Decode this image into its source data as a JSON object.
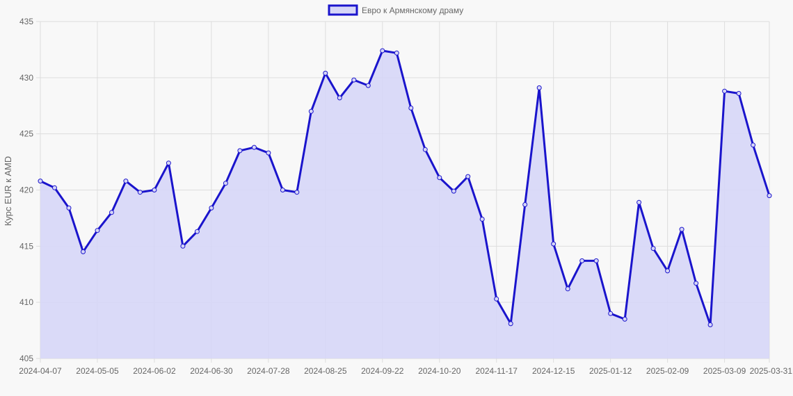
{
  "chart_data": {
    "type": "area",
    "title": "",
    "xlabel": "",
    "ylabel": "Курс EUR к AMD",
    "ylim": [
      405,
      435
    ],
    "y_ticks": [
      405,
      410,
      415,
      420,
      425,
      430,
      435
    ],
    "x_tick_labels": [
      "2024-04-07",
      "2024-05-05",
      "2024-06-02",
      "2024-06-30",
      "2024-07-28",
      "2024-08-25",
      "2024-09-22",
      "2024-10-20",
      "2024-11-17",
      "2024-12-15",
      "2025-01-12",
      "2025-02-09",
      "2025-03-09",
      "2025-03-31"
    ],
    "grid": true,
    "legend_position": "top-center",
    "colors": {
      "line": "#1a14cc",
      "fill": "#d6d6f7",
      "grid": "#dddddd",
      "axis_text": "#666666"
    },
    "series": [
      {
        "name": "Евро к Армянскому драму",
        "x": [
          "2024-04-07",
          "2024-04-14",
          "2024-04-21",
          "2024-04-28",
          "2024-05-05",
          "2024-05-12",
          "2024-05-19",
          "2024-05-26",
          "2024-06-02",
          "2024-06-09",
          "2024-06-16",
          "2024-06-23",
          "2024-06-30",
          "2024-07-07",
          "2024-07-14",
          "2024-07-21",
          "2024-07-28",
          "2024-08-04",
          "2024-08-11",
          "2024-08-18",
          "2024-08-25",
          "2024-09-01",
          "2024-09-08",
          "2024-09-15",
          "2024-09-22",
          "2024-09-29",
          "2024-10-06",
          "2024-10-13",
          "2024-10-20",
          "2024-10-27",
          "2024-11-03",
          "2024-11-10",
          "2024-11-17",
          "2024-11-24",
          "2024-12-01",
          "2024-12-08",
          "2024-12-15",
          "2024-12-22",
          "2024-12-29",
          "2025-01-05",
          "2025-01-12",
          "2025-01-19",
          "2025-01-26",
          "2025-02-02",
          "2025-02-09",
          "2025-02-16",
          "2025-02-23",
          "2025-03-02",
          "2025-03-09",
          "2025-03-16",
          "2025-03-23",
          "2025-03-31"
        ],
        "values": [
          420.8,
          420.2,
          418.4,
          414.5,
          416.4,
          418.0,
          420.8,
          419.8,
          420.0,
          422.4,
          415.0,
          416.3,
          418.4,
          420.6,
          423.5,
          423.8,
          423.3,
          420.0,
          419.8,
          427.0,
          430.4,
          428.2,
          429.8,
          429.3,
          432.4,
          432.2,
          427.3,
          423.6,
          421.1,
          419.9,
          421.2,
          417.4,
          410.3,
          408.1,
          418.7,
          429.1,
          415.2,
          411.2,
          413.7,
          413.7,
          409.0,
          408.5,
          418.9,
          414.8,
          412.8,
          416.5,
          411.7,
          408.0,
          428.8,
          428.6,
          424.0,
          419.5
        ]
      }
    ]
  }
}
